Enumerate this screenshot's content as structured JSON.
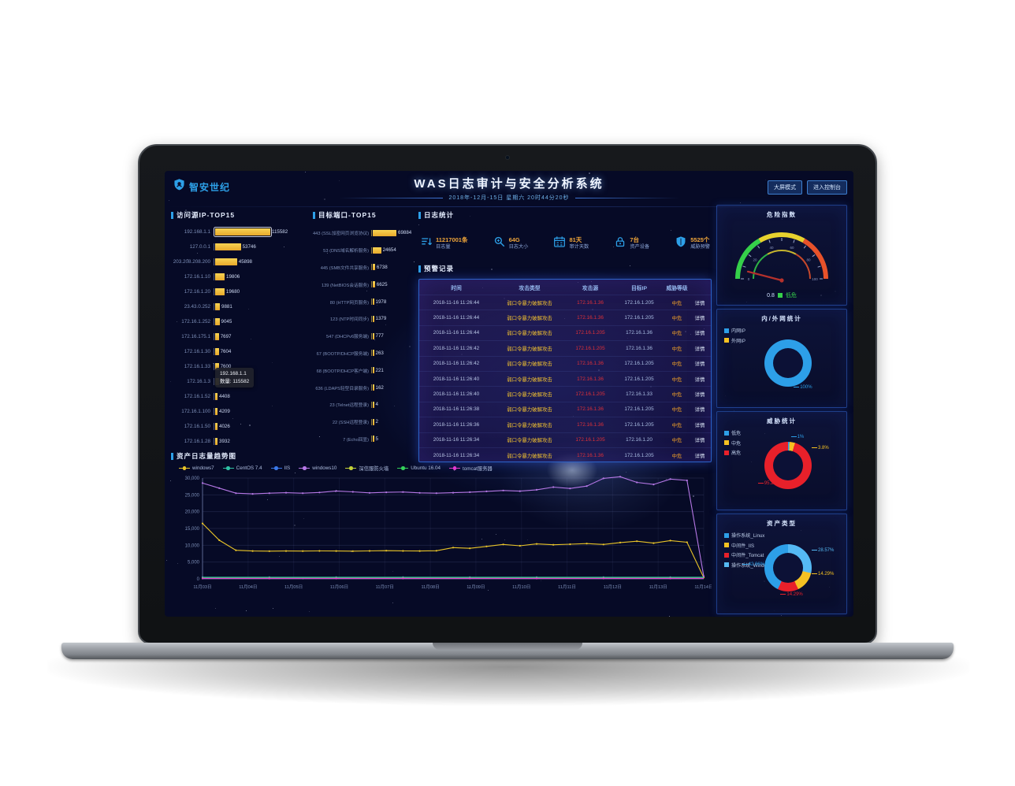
{
  "header": {
    "logo_text": "智安世纪",
    "title": "WAS日志审计与安全分析系统",
    "subtitle": "2018年-12月-15日 星期六 20时44分20秒",
    "buttons": [
      {
        "label": "大屏模式"
      },
      {
        "label": "进入控制台"
      }
    ]
  },
  "ip_chart": {
    "title": "访问源IP-TOP15",
    "max": 115582,
    "items": [
      {
        "label": "192.168.1.1",
        "value": 115582
      },
      {
        "label": "127.0.0.1",
        "value": 53746
      },
      {
        "label": "203.208.208.200",
        "value": 45898
      },
      {
        "label": "172.16.1.10",
        "value": 19806
      },
      {
        "label": "172.16.1.20",
        "value": 19680
      },
      {
        "label": "23.43.0.252",
        "value": 9881
      },
      {
        "label": "172.16.1.252",
        "value": 9045
      },
      {
        "label": "172.16.175.1",
        "value": 7697
      },
      {
        "label": "172.16.1.30",
        "value": 7604
      },
      {
        "label": "172.16.1.33",
        "value": 7600
      },
      {
        "label": "172.16.1.3",
        "value": 7598
      },
      {
        "label": "172.16.1.52",
        "value": 4408
      },
      {
        "label": "172.16.1.100",
        "value": 4209
      },
      {
        "label": "172.16.1.50",
        "value": 4026
      },
      {
        "label": "172.16.1.28",
        "value": 3932
      }
    ],
    "tooltip": {
      "line1": "192.168.1.1",
      "line2": "数量: 115582"
    }
  },
  "port_chart": {
    "title": "目标端口-TOP15",
    "max": 69884,
    "items": [
      {
        "label": "443 (SSL加密网页浏览协议)",
        "value": 69884
      },
      {
        "label": "53 (DNS域名解析服务)",
        "value": 24654
      },
      {
        "label": "445 (SMB文件共享服务)",
        "value": 6738
      },
      {
        "label": "139 (NetBIOS会话服务)",
        "value": 6625
      },
      {
        "label": "80 (HTTP网页服务)",
        "value": 1978
      },
      {
        "label": "123 (NTP时间同步)",
        "value": 1379
      },
      {
        "label": "547 (DHCPv6服务端)",
        "value": 777
      },
      {
        "label": "67 (BOOTP/DHCP服务端)",
        "value": 263
      },
      {
        "label": "68 (BOOTP/DHCP客户端)",
        "value": 221
      },
      {
        "label": "636 (LDAPS轻型目录服务)",
        "value": 162
      },
      {
        "label": "23 (Telnet远程登录)",
        "value": 4
      },
      {
        "label": "22 (SSH远程登录)",
        "value": 2
      },
      {
        "label": "7 (Echo回显)",
        "value": 5
      }
    ]
  },
  "stats": {
    "title": "日志统计",
    "items": [
      {
        "icon": "log-volume-icon",
        "value": "11217001条",
        "label": "日志量"
      },
      {
        "icon": "search-icon",
        "value": "64G",
        "label": "日志大小"
      },
      {
        "icon": "calendar-icon",
        "value": "81天",
        "label": "审计天数"
      },
      {
        "icon": "lock-icon",
        "value": "7台",
        "label": "资产设备"
      },
      {
        "icon": "shield-icon",
        "value": "5525个",
        "label": "威胁预警"
      }
    ]
  },
  "alerts": {
    "title": "预警记录",
    "columns": [
      "时间",
      "攻击类型",
      "攻击源",
      "目标IP",
      "威胁等级",
      ""
    ],
    "detail_label": "详情",
    "rows": [
      {
        "time": "2018-11-16 11:26:44",
        "type": "弱口令暴力破解攻击",
        "source": "172.16.1.36",
        "target": "172.16.1.205",
        "level": "中危"
      },
      {
        "time": "2018-11-16 11:26:44",
        "type": "弱口令暴力破解攻击",
        "source": "172.16.1.36",
        "target": "172.16.1.205",
        "level": "中危"
      },
      {
        "time": "2018-11-16 11:26:44",
        "type": "弱口令暴力破解攻击",
        "source": "172.16.1.205",
        "target": "172.16.1.36",
        "level": "中危"
      },
      {
        "time": "2018-11-16 11:26:42",
        "type": "弱口令暴力破解攻击",
        "source": "172.16.1.205",
        "target": "172.16.1.36",
        "level": "中危"
      },
      {
        "time": "2018-11-16 11:26:42",
        "type": "弱口令暴力破解攻击",
        "source": "172.16.1.36",
        "target": "172.16.1.205",
        "level": "中危"
      },
      {
        "time": "2018-11-16 11:26:40",
        "type": "弱口令暴力破解攻击",
        "source": "172.16.1.36",
        "target": "172.16.1.205",
        "level": "中危"
      },
      {
        "time": "2018-11-16 11:26:40",
        "type": "弱口令暴力破解攻击",
        "source": "172.16.1.205",
        "target": "172.16.1.33",
        "level": "中危"
      },
      {
        "time": "2018-11-16 11:26:38",
        "type": "弱口令暴力破解攻击",
        "source": "172.16.1.36",
        "target": "172.16.1.205",
        "level": "中危"
      },
      {
        "time": "2018-11-16 11:26:36",
        "type": "弱口令暴力破解攻击",
        "source": "172.16.1.36",
        "target": "172.16.1.205",
        "level": "中危"
      },
      {
        "time": "2018-11-16 11:26:34",
        "type": "弱口令暴力破解攻击",
        "source": "172.16.1.205",
        "target": "172.16.1.20",
        "level": "中危"
      },
      {
        "time": "2018-11-16 11:26:34",
        "type": "弱口令暴力破解攻击",
        "source": "172.16.1.36",
        "target": "172.16.1.205",
        "level": "中危"
      }
    ]
  },
  "right_panels": {
    "gauge": {
      "title": "危险指数",
      "value": "0.8",
      "status": "低危",
      "status_color": "#35d04a",
      "ticks": [
        "0",
        "20",
        "40",
        "60",
        "80",
        "100"
      ]
    },
    "net": {
      "title": "内/外网统计",
      "legend": [
        {
          "label": "内网IP",
          "color": "#2d9fe8"
        },
        {
          "label": "外网IP",
          "color": "#f5c122"
        }
      ],
      "slices": [
        {
          "name": "内网IP",
          "pct": 100,
          "color": "#2d9fe8"
        }
      ],
      "labels": [
        {
          "text": "100%",
          "pos": "bottom-right",
          "color": "#2d9fe8"
        }
      ]
    },
    "threat": {
      "title": "威胁统计",
      "legend": [
        {
          "label": "低危",
          "color": "#2d9fe8"
        },
        {
          "label": "中危",
          "color": "#f5c122"
        },
        {
          "label": "高危",
          "color": "#e8202a"
        }
      ],
      "slices": [
        {
          "name": "低危",
          "pct": 1,
          "color": "#2d9fe8"
        },
        {
          "name": "中危",
          "pct": 3.8,
          "color": "#f5c122"
        },
        {
          "name": "高危",
          "pct": 95.2,
          "color": "#e8202a"
        }
      ],
      "labels": [
        {
          "text": "1%",
          "pos": "top",
          "color": "#2d9fe8"
        },
        {
          "text": "3.8%",
          "pos": "right-top",
          "color": "#f5c122"
        },
        {
          "text": "95.2%",
          "pos": "bottom-left",
          "color": "#e8202a"
        }
      ]
    },
    "assets": {
      "title": "资产类型",
      "legend": [
        {
          "label": "操作系统_Linux",
          "color": "#2d9fe8"
        },
        {
          "label": "中间件_IIS",
          "color": "#f5c122"
        },
        {
          "label": "中间件_Tomcat",
          "color": "#e8202a"
        },
        {
          "label": "操作系统_Windows",
          "color": "#55b9f3"
        }
      ],
      "slices": [
        {
          "name": "操作系统_Windows",
          "pct": 28.57,
          "color": "#55b9f3"
        },
        {
          "name": "中间件_IIS",
          "pct": 14.29,
          "color": "#f5c122"
        },
        {
          "name": "中间件_Tomcat",
          "pct": 14.29,
          "color": "#e8202a"
        },
        {
          "name": "操作系统_Linux",
          "pct": 42.85,
          "color": "#2d9fe8"
        }
      ],
      "labels": [
        {
          "text": "28.57%",
          "pos": "right-top",
          "color": "#55b9f3"
        },
        {
          "text": "14.29%",
          "pos": "right",
          "color": "#f5c122"
        },
        {
          "text": "14.29%",
          "pos": "bottom",
          "color": "#e8202a"
        },
        {
          "text": "42.86%",
          "pos": "left",
          "color": "#2d9fe8"
        }
      ]
    }
  },
  "trend_chart": {
    "type": "line",
    "title": "资产日志量趋势图",
    "ylim": [
      0,
      30000
    ],
    "y_ticks": [
      "0",
      "5,000",
      "10,000",
      "15,000",
      "20,000",
      "25,000",
      "30,000"
    ],
    "x_labels": [
      "11月03日",
      "11月04日",
      "11月05日",
      "11月06日",
      "11月07日",
      "11月08日",
      "11月09日",
      "11月10日",
      "11月11日",
      "11月12日",
      "11月13日",
      "11月14日"
    ],
    "x_count": 31,
    "series": [
      {
        "name": "windows7",
        "color": "#e9c428",
        "values": [
          16500,
          11500,
          8500,
          8300,
          8250,
          8300,
          8280,
          8330,
          8300,
          8260,
          8310,
          8380,
          8320,
          8300,
          8360,
          9300,
          9100,
          9650,
          10250,
          9850,
          10400,
          10150,
          10320,
          10500,
          10250,
          10800,
          11200,
          10650,
          11400,
          10900,
          400
        ]
      },
      {
        "name": "CentOS 7.4",
        "color": "#2fc2a5",
        "values": [
          500
        ]
      },
      {
        "name": "IIS",
        "color": "#3a78e8",
        "values": [
          350
        ]
      },
      {
        "name": "windows10",
        "color": "#b678e6",
        "values": [
          28500,
          27000,
          25500,
          25300,
          25500,
          25650,
          25500,
          25700,
          26150,
          25900,
          25600,
          25750,
          25850,
          25600,
          25500,
          25650,
          25800,
          26050,
          26300,
          26100,
          26500,
          27300,
          26900,
          27600,
          29900,
          30400,
          28700,
          28100,
          29700,
          29300,
          800
        ]
      },
      {
        "name": "深信服防火墙",
        "color": "#c3d23a",
        "values": [
          260
        ]
      },
      {
        "name": "Ubuntu 16.04",
        "color": "#34d05a",
        "values": [
          180
        ]
      },
      {
        "name": "tomcat服务器",
        "color": "#e23ad0",
        "values": [
          120
        ]
      }
    ]
  }
}
